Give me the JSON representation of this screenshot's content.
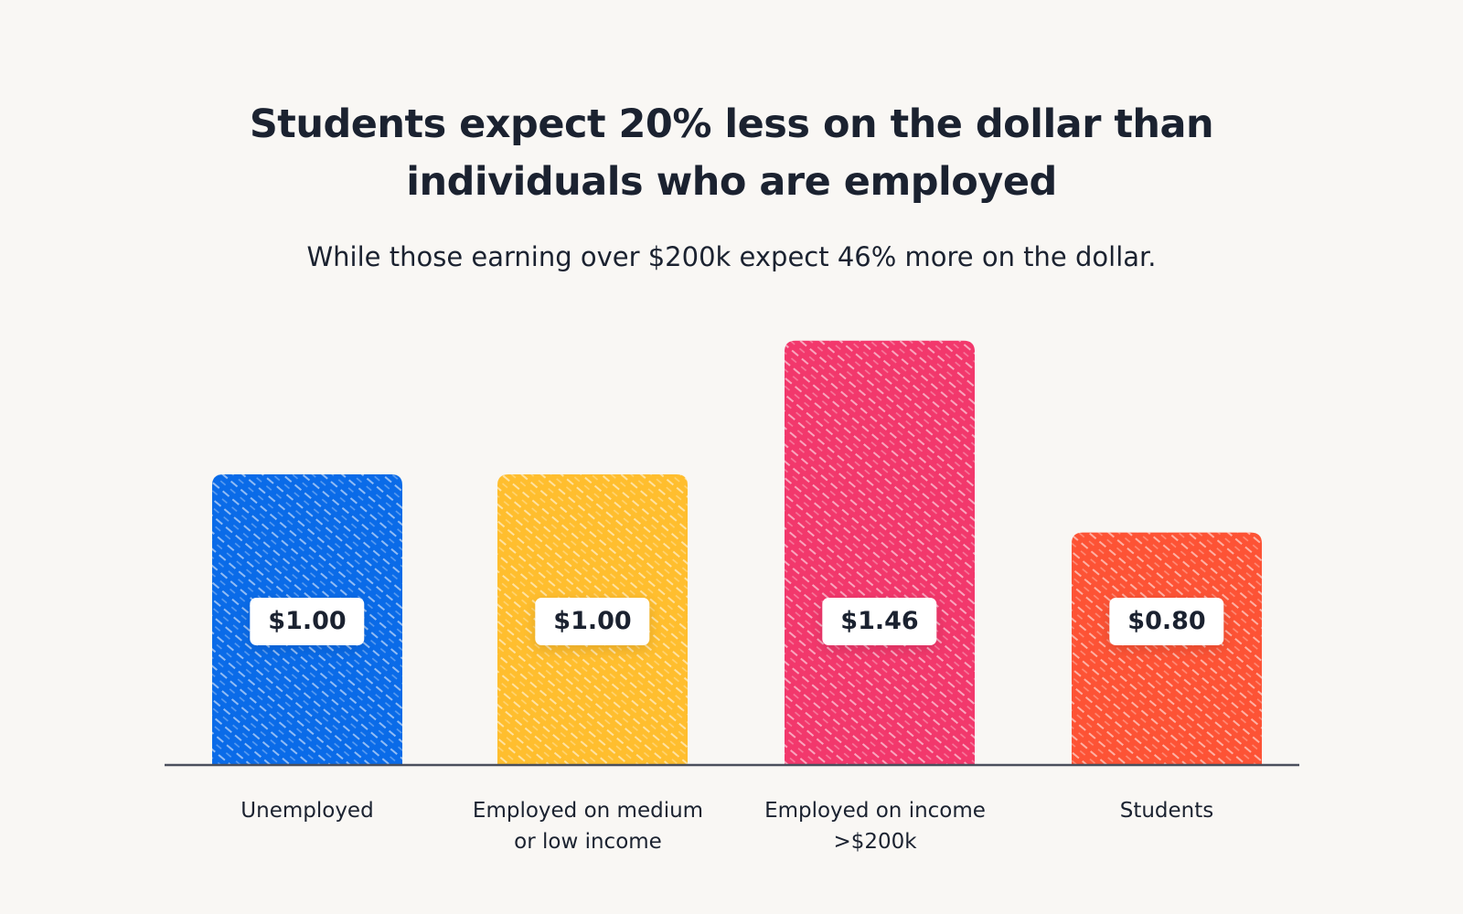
{
  "chart_data": {
    "type": "bar",
    "title": "Students expect 20% less on the dollar than individuals who are employed",
    "subtitle": "While those earning over $200k expect 46% more on the dollar.",
    "categories": [
      "Unemployed",
      "Employed on medium or low income",
      "Employed on income >$200k",
      "Students"
    ],
    "values": [
      1.0,
      1.0,
      1.46,
      0.8
    ],
    "value_labels": [
      "$1.00",
      "$1.00",
      "$1.46",
      "$0.80"
    ],
    "colors": [
      "#0a6be8",
      "#ffbe2e",
      "#f2386c",
      "#fd5335"
    ]
  }
}
